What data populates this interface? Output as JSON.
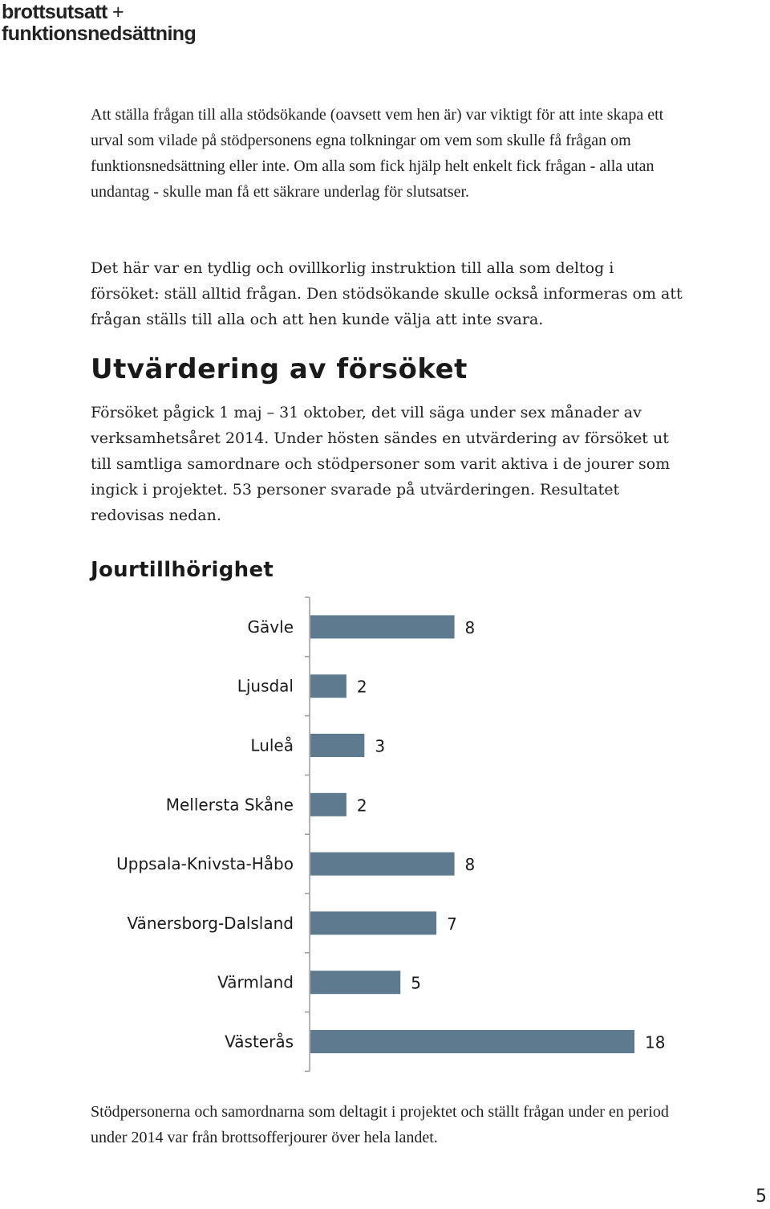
{
  "header": {
    "logo_line1": "brottsutsatt",
    "logo_plus": "+",
    "logo_line2": "funktionsnedsättning"
  },
  "paragraphs": {
    "p1": "Att ställa frågan till alla stödsökande (oavsett vem hen är) var viktigt för att inte skapa ett urval som vilade på stödpersonens egna tolkningar om vem som skulle få frågan om funktionsnedsättning eller inte. Om alla som fick hjälp helt enkelt fick frågan - alla utan undantag - skulle man få ett säkrare underlag för slutsatser.",
    "p2": "Det här var en tydlig och ovillkorlig instruktion till alla som deltog i försöket: ställ alltid frågan. Den stödsökande skulle också informeras om att frågan ställs till alla och att hen kunde välja att inte svara.",
    "p3": "Försöket pågick 1 maj – 31 oktober, det vill säga under sex månader av verksamhetsåret 2014. Under hösten sändes en utvärdering av försöket ut till samtliga samordnare och stödpersoner som varit aktiva i de jourer som ingick i projektet. 53 personer svarade på utvärderingen. Resultatet redovisas nedan.",
    "p4": "Stödpersonerna och samordnarna som deltagit i projektet och ställt frågan under en period under 2014 var från brottsofferjourer över hela landet."
  },
  "headings": {
    "section": "Utvärdering av försöket",
    "chart": "Jourtillhörighet"
  },
  "chart_data": {
    "type": "bar",
    "orientation": "horizontal",
    "title": "Jourtillhörighet",
    "categories": [
      "Gävle",
      "Ljusdal",
      "Luleå",
      "Mellersta Skåne",
      "Uppsala-Knivsta-Håbo",
      "Vänersborg-Dalsland",
      "Värmland",
      "Västerås"
    ],
    "values": [
      8,
      2,
      3,
      2,
      8,
      7,
      5,
      18
    ],
    "xlim": [
      0,
      18
    ],
    "bar_color": "#5d7a8e",
    "grid": false,
    "data_labels": true
  },
  "footer": {
    "page_number": "5"
  }
}
